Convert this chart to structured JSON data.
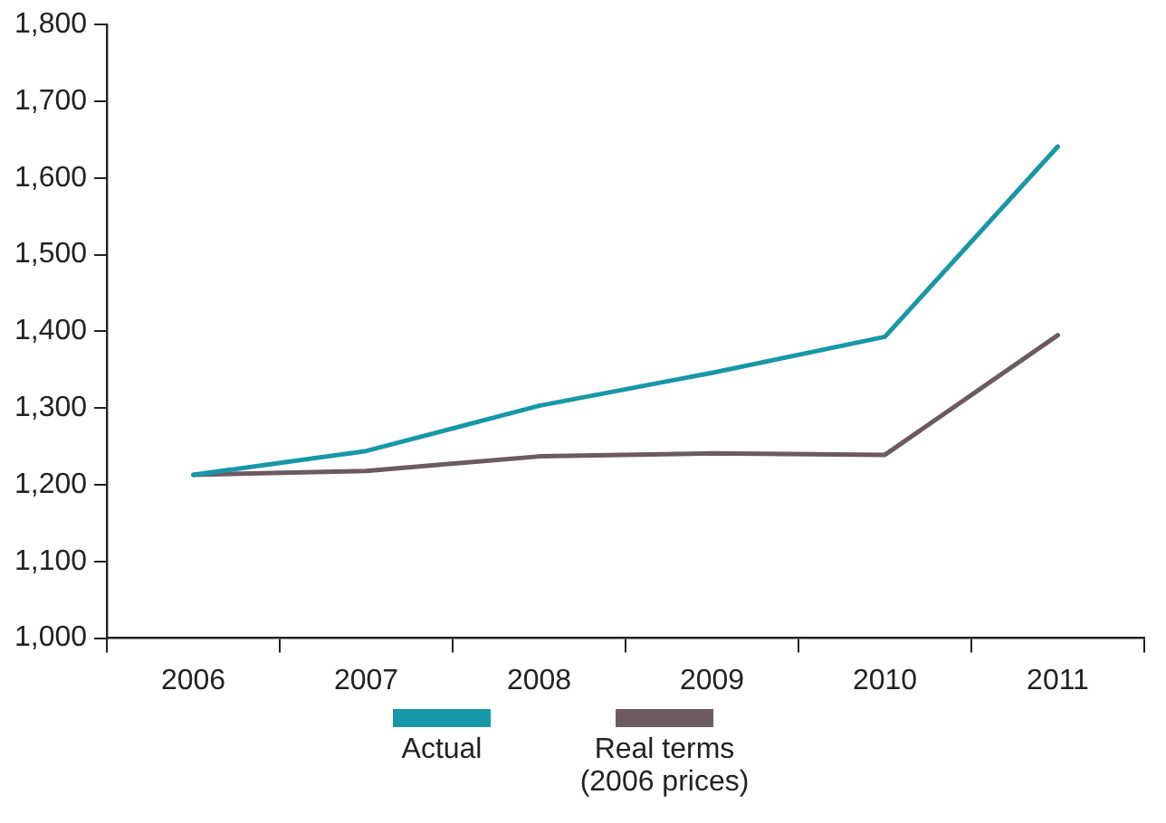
{
  "chart_data": {
    "type": "line",
    "categories": [
      "2006",
      "2007",
      "2008",
      "2009",
      "2010",
      "2011"
    ],
    "series": [
      {
        "name": "Actual",
        "color": "#1897a6",
        "values": [
          1213,
          1244,
          1303,
          1346,
          1393,
          1641
        ]
      },
      {
        "name": "Real terms (2006 prices)",
        "color": "#6c5a62",
        "values": [
          1213,
          1218,
          1237,
          1241,
          1239,
          1395
        ]
      }
    ],
    "ylim": [
      1000,
      1800
    ],
    "yticks": [
      {
        "value": 1000,
        "label": "1,000"
      },
      {
        "value": 1100,
        "label": "1,100"
      },
      {
        "value": 1200,
        "label": "1,200"
      },
      {
        "value": 1300,
        "label": "1,300"
      },
      {
        "value": 1400,
        "label": "1,400"
      },
      {
        "value": 1500,
        "label": "1,500"
      },
      {
        "value": 1600,
        "label": "1,600"
      },
      {
        "value": 1700,
        "label": "1,700"
      },
      {
        "value": 1800,
        "label": "1,800"
      }
    ],
    "grid": false,
    "legend": "bottom",
    "marker": "none",
    "line_style": "solid"
  }
}
